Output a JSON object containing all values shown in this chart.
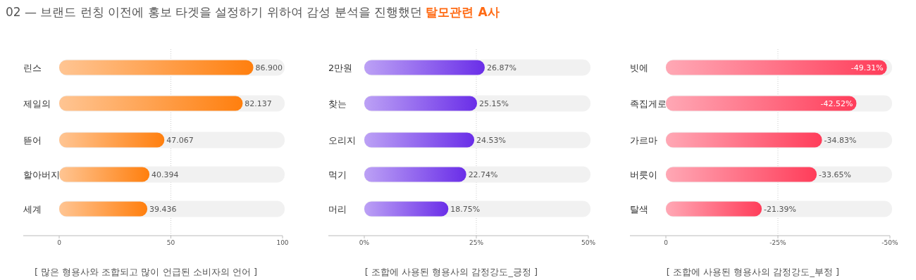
{
  "chart_data": [
    {
      "type": "bar",
      "orientation": "horizontal",
      "title": "02 — 브랜드 런칭 이전에 홍보 타겟을 설정하기 위하여 감성 분석을 진행했던 **탈모관련 A사**",
      "xlabel": "[ 많은 형용사와 조합되고 많이 언급된 소비자의 언어 ]",
      "categories": [
        "린스",
        "제일의",
        "뜯어",
        "할아버지",
        "세계"
      ],
      "values": [
        86.9,
        82.137,
        47.067,
        40.394,
        39.436
      ],
      "value_labels": [
        "86.900",
        "82.137",
        "47.067",
        "40.394",
        "39.436"
      ],
      "color": "#ff7f0e",
      "xlim": [
        0,
        100
      ],
      "xticks": [
        0,
        50,
        100
      ],
      "grid": "x"
    },
    {
      "type": "bar",
      "orientation": "horizontal",
      "xlabel": "[ 조합에 사용된 형용사의 감정강도_긍정 ]",
      "categories": [
        "2만원",
        "찾는",
        "오리지",
        "먹기",
        "머리"
      ],
      "values": [
        26.87,
        25.15,
        24.53,
        22.74,
        18.75
      ],
      "value_labels": [
        "26.87%",
        "25.15%",
        "24.53%",
        "22.74%",
        "18.75%"
      ],
      "color": "#6a2ee8",
      "xlim": [
        0,
        50
      ],
      "xticks": [
        {
          "value": 0,
          "label": "0%"
        },
        {
          "value": 25,
          "label": "25%"
        },
        {
          "value": 50,
          "label": "50%"
        }
      ],
      "grid": "x"
    },
    {
      "type": "bar",
      "orientation": "horizontal",
      "xlabel": "[ 조합에 사용된 형용사의 감정강도_부정 ]",
      "categories": [
        "빗에",
        "족집게로",
        "가르마",
        "버릇이",
        "탈색"
      ],
      "values": [
        -49.31,
        -42.52,
        -34.83,
        -33.65,
        -21.39
      ],
      "value_labels": [
        "-49.31%",
        "-42.52%",
        "-34.83%",
        "-33.65%",
        "-21.39%"
      ],
      "color": "#ff3d5a",
      "xlim": [
        0,
        -50
      ],
      "xticks": [
        0,
        {
          "value": -25,
          "label": "-25%"
        },
        {
          "value": -50,
          "label": "-50%"
        }
      ],
      "grid": "x"
    }
  ]
}
